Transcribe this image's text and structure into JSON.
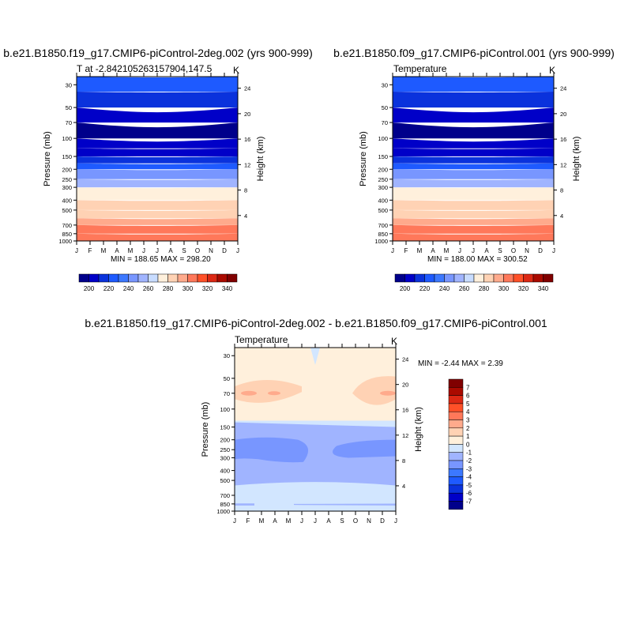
{
  "chart_data": [
    {
      "type": "heatmap",
      "title": "b.e21.B1850.f19_g17.CMIP6-piControl-2deg.002 (yrs 900-999)",
      "left_string": "T at -2.842105263157904,147.5",
      "right_string": "K",
      "ylabel": "Pressure (mb)",
      "ylabel_right": "Height (km)",
      "x_ticks": [
        "J",
        "F",
        "M",
        "A",
        "M",
        "J",
        "J",
        "A",
        "S",
        "O",
        "N",
        "D",
        "J"
      ],
      "y_ticks": [
        30,
        50,
        70,
        100,
        150,
        200,
        250,
        300,
        400,
        500,
        700,
        850,
        1000
      ],
      "y_ticks_right": [
        24,
        20,
        16,
        12,
        8,
        4
      ],
      "ylim": [
        1000,
        25
      ],
      "stats": "MIN = 188.65 MAX = 298.20",
      "colorbar": {
        "orientation": "horizontal",
        "labels": [
          "200",
          "220",
          "240",
          "260",
          "280",
          "300",
          "320",
          "340"
        ]
      },
      "levels": [
        1000,
        850,
        700,
        600,
        500,
        400,
        300,
        250,
        200,
        175,
        150,
        125,
        100,
        70,
        50,
        35,
        25
      ],
      "values": [
        298,
        296,
        290,
        283,
        276,
        266,
        252,
        236,
        222,
        213,
        202,
        195,
        192,
        195,
        206,
        215
      ]
    },
    {
      "type": "heatmap",
      "title": "b.e21.B1850.f09_g17.CMIP6-piControl.001 (yrs 900-999)",
      "left_string": "Temperature",
      "right_string": "K",
      "ylabel": "Pressure (mb)",
      "ylabel_right": "Height (km)",
      "x_ticks": [
        "J",
        "F",
        "M",
        "A",
        "M",
        "J",
        "J",
        "A",
        "S",
        "O",
        "N",
        "D",
        "J"
      ],
      "y_ticks": [
        30,
        50,
        70,
        100,
        150,
        200,
        250,
        300,
        400,
        500,
        700,
        850,
        1000
      ],
      "y_ticks_right": [
        24,
        20,
        16,
        12,
        8,
        4
      ],
      "ylim": [
        1000,
        25
      ],
      "stats": "MIN = 188.00 MAX = 300.52",
      "colorbar": {
        "orientation": "horizontal",
        "labels": [
          "200",
          "220",
          "240",
          "260",
          "280",
          "300",
          "320",
          "340"
        ]
      },
      "levels": [
        1000,
        850,
        700,
        600,
        500,
        400,
        300,
        250,
        200,
        175,
        150,
        125,
        100,
        70,
        50,
        35,
        25
      ],
      "values": [
        298,
        296,
        290,
        283,
        276,
        266,
        252,
        236,
        222,
        213,
        202,
        195,
        192,
        195,
        206,
        215
      ]
    },
    {
      "type": "heatmap",
      "title": "b.e21.B1850.f19_g17.CMIP6-piControl-2deg.002 - b.e21.B1850.f09_g17.CMIP6-piControl.001",
      "left_string": "Temperature",
      "right_string": "K",
      "ylabel": "Pressure (mb)",
      "ylabel_right": "Height (km)",
      "x_ticks": [
        "J",
        "F",
        "M",
        "A",
        "M",
        "J",
        "J",
        "A",
        "S",
        "O",
        "N",
        "D",
        "J"
      ],
      "y_ticks": [
        30,
        50,
        70,
        100,
        150,
        200,
        250,
        300,
        400,
        500,
        700,
        850,
        1000
      ],
      "y_ticks_right": [
        24,
        20,
        16,
        12,
        8,
        4
      ],
      "ylim": [
        1000,
        25
      ],
      "stats": "MIN =  -2.44 MAX =   2.39",
      "colorbar": {
        "orientation": "vertical",
        "labels": [
          "7",
          "6",
          "5",
          "4",
          "3",
          "2",
          "1",
          "0",
          "-1",
          "-2",
          "-3",
          "-4",
          "-5",
          "-6",
          "-7"
        ]
      },
      "levels": [
        1000,
        850,
        700,
        500,
        300,
        250,
        200,
        150,
        125,
        100,
        25
      ],
      "values": [
        -0.5,
        -0.5,
        -1.5,
        -2.5,
        -2.5,
        -1.5,
        -1.5,
        -1.5,
        0.5,
        0.5
      ]
    }
  ],
  "colors": {
    "abs_scale": [
      "#00008b",
      "#0000c8",
      "#0a32dc",
      "#1e5aff",
      "#3c78ff",
      "#7896ff",
      "#a0b4ff",
      "#c8dcff",
      "#fff0dc",
      "#ffd2b4",
      "#ffaa8c",
      "#ff785a",
      "#ff5028",
      "#dc2814",
      "#aa0a00",
      "#800000"
    ],
    "diff_scale": [
      "#00008b",
      "#0000c8",
      "#0a32dc",
      "#1e5aff",
      "#3c78ff",
      "#7896ff",
      "#a0b4ff",
      "#d2e6ff",
      "#fff0dc",
      "#ffd2b4",
      "#ffaa8c",
      "#ff785a",
      "#ff5028",
      "#dc2814",
      "#aa0a00",
      "#800000"
    ]
  }
}
